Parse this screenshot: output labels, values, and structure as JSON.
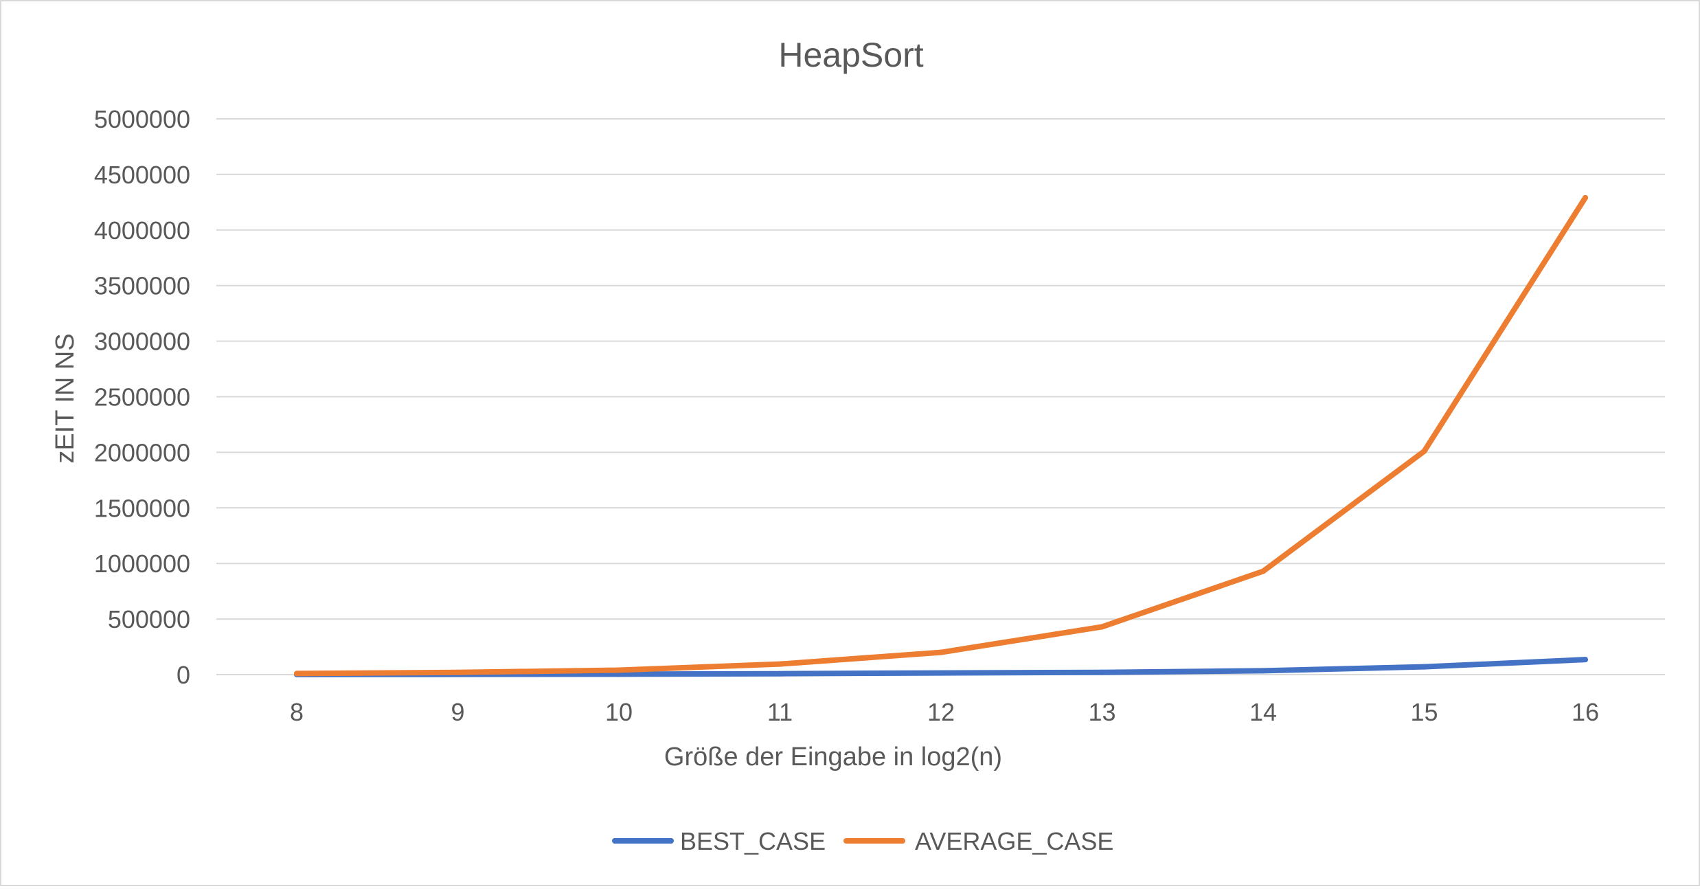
{
  "chart_data": {
    "type": "line",
    "title": "HeapSort",
    "xlabel": "Größe der Eingabe in log2(n)",
    "ylabel": "zEIT IN NS",
    "categories": [
      "8",
      "9",
      "10",
      "11",
      "12",
      "13",
      "14",
      "15",
      "16"
    ],
    "ylim": [
      0,
      5000000
    ],
    "yticks": [
      0,
      500000,
      1000000,
      1500000,
      2000000,
      2500000,
      3000000,
      3500000,
      4000000,
      4500000,
      5000000
    ],
    "grid": true,
    "legend_position": "bottom",
    "series": [
      {
        "name": "BEST_CASE",
        "color": "#4472c4",
        "values": [
          1000,
          2000,
          4000,
          8000,
          15000,
          20000,
          35000,
          70000,
          135000
        ]
      },
      {
        "name": "AVERAGE_CASE",
        "color": "#ed7d31",
        "values": [
          10000,
          20000,
          40000,
          95000,
          200000,
          430000,
          930000,
          2010000,
          4290000
        ]
      }
    ]
  }
}
